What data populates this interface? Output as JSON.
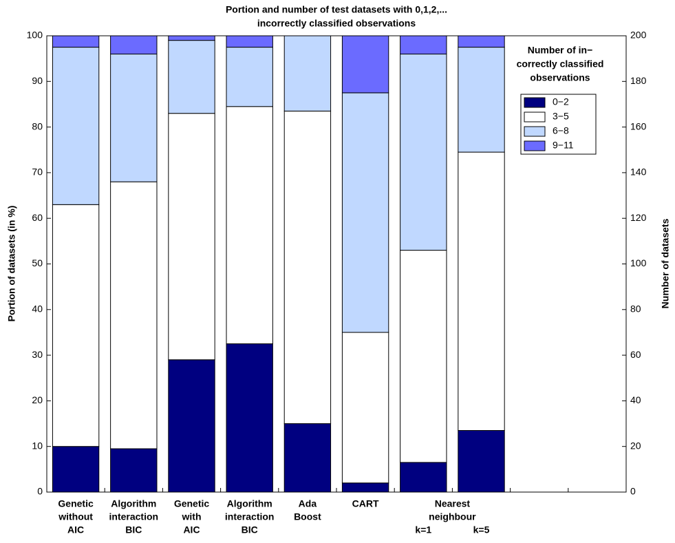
{
  "chart_data": {
    "type": "stacked_bar",
    "title": [
      "Portion and number of test datasets with 0,1,2,...",
      "incorrectly classified observations"
    ],
    "ylabel": "Portion of datasets (in %)",
    "y2label": "Number of datasets",
    "categories": [
      [
        "Genetic",
        "without",
        "AIC"
      ],
      [
        "Algorithm",
        "interaction",
        "BIC"
      ],
      [
        "Genetic",
        "with",
        "AIC"
      ],
      [
        "Algorithm",
        "interaction",
        "BIC"
      ],
      [
        "Ada",
        "Boost"
      ],
      [
        "CART"
      ],
      [
        null,
        null,
        "k=1"
      ],
      [
        null,
        null,
        "k=5"
      ]
    ],
    "x_groups": [
      {
        "lines": [
          "Nearest",
          "neighbour"
        ],
        "span": [
          6,
          7
        ]
      }
    ],
    "series": [
      {
        "name": "0−2",
        "color": "#000080",
        "values": [
          10,
          9.5,
          29,
          32.5,
          15,
          2,
          6.5,
          13.5
        ]
      },
      {
        "name": "3−5",
        "color": "#ffffff",
        "values": [
          53,
          58.5,
          54,
          52,
          68.5,
          33,
          46.5,
          61
        ]
      },
      {
        "name": "6−8",
        "color": "#c0d8ff",
        "values": [
          34.5,
          28,
          16,
          13,
          16.5,
          52.5,
          43,
          23
        ]
      },
      {
        "name": "9−11",
        "color": "#6b6bff",
        "values": [
          2.5,
          4,
          1,
          2.5,
          0,
          12.5,
          4,
          2.5
        ]
      }
    ],
    "legend_title": [
      "Number of in−",
      "correctly classified",
      "observations"
    ],
    "legend": "upper right",
    "slots": 10,
    "ylim": [
      0,
      100
    ],
    "yticks": [
      0,
      10,
      20,
      30,
      40,
      50,
      60,
      70,
      80,
      90,
      100
    ],
    "y2lim": [
      0,
      200
    ],
    "y2ticks": [
      0,
      20,
      40,
      60,
      80,
      100,
      120,
      140,
      160,
      180,
      200
    ]
  }
}
